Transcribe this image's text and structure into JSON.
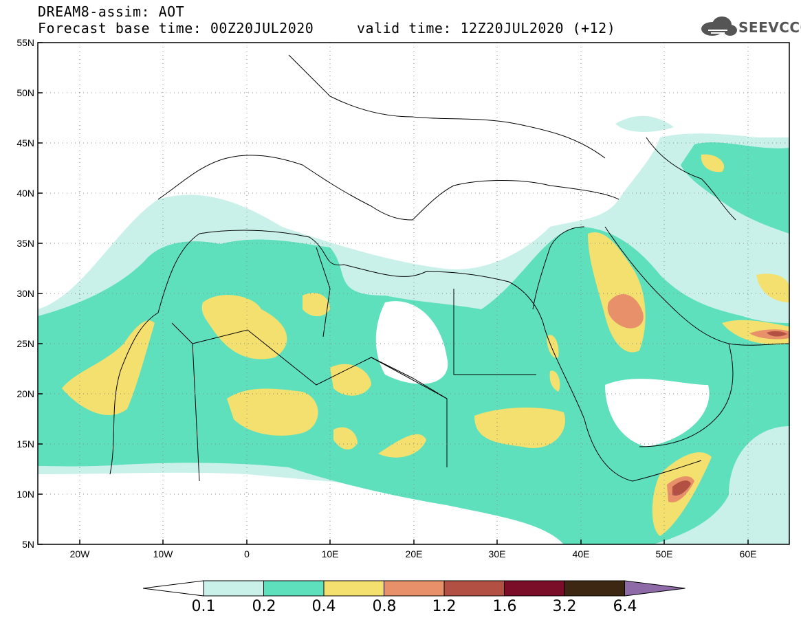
{
  "header": {
    "title_line1": "DREAM8-assim: AOT",
    "title_line2": "Forecast base time: 00Z20JUL2020     valid time: 12Z20JUL2020 (+12)"
  },
  "logo": {
    "text": "SEEVCCC",
    "icon": "cloud-icon"
  },
  "map": {
    "lat_labels": [
      "55N",
      "50N",
      "45N",
      "40N",
      "35N",
      "30N",
      "25N",
      "20N",
      "15N",
      "10N",
      "5N"
    ],
    "lon_labels": [
      "20W",
      "10W",
      "0",
      "10E",
      "20E",
      "30E",
      "40E",
      "50E",
      "60E"
    ]
  },
  "colorbar": {
    "colors": [
      "#c9f1ea",
      "#5fe0bd",
      "#f3e06e",
      "#e8906a",
      "#b35044",
      "#7a0d28",
      "#3d2712",
      "#8f6aa8"
    ],
    "labels": [
      "0.1",
      "0.2",
      "0.4",
      "0.8",
      "1.2",
      "1.6",
      "3.2",
      "6.4"
    ]
  }
}
